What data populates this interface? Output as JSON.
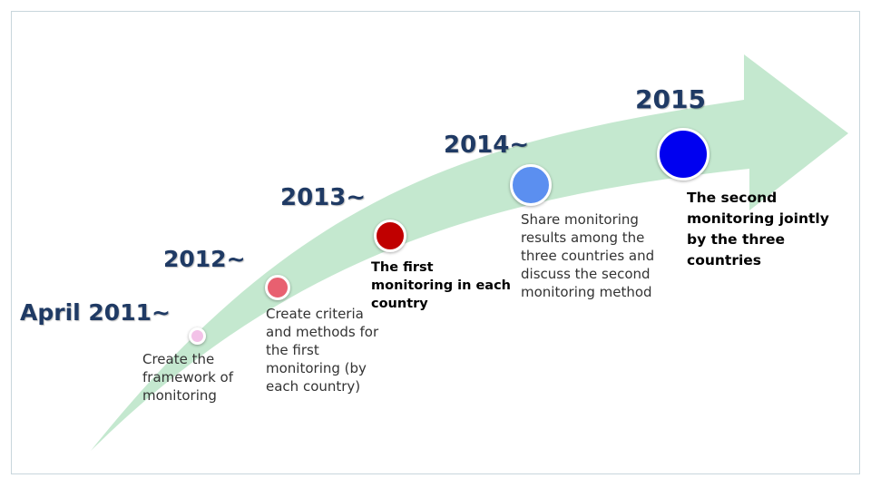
{
  "milestones": [
    {
      "year": "April 2011~",
      "description": "Create the framework of monitoring",
      "bold": false,
      "color": "#f3c2e8"
    },
    {
      "year": "2012~",
      "description": "Create criteria and methods for the first monitoring (by each country)",
      "bold": false,
      "color": "#e86070"
    },
    {
      "year": "2013~",
      "description": "The first monitoring in each country",
      "bold": true,
      "color": "#c00000"
    },
    {
      "year": "2014~",
      "description": "Share monitoring results among the three countries and discuss the second monitoring method",
      "bold": false,
      "color": "#5b8ff0"
    },
    {
      "year": "2015",
      "description": "The second monitoring jointly by the three countries",
      "bold": true,
      "color": "#0000f0"
    }
  ],
  "colors": {
    "arrow_fill": "#c4e8cf",
    "year_text": "#1f3a64"
  }
}
